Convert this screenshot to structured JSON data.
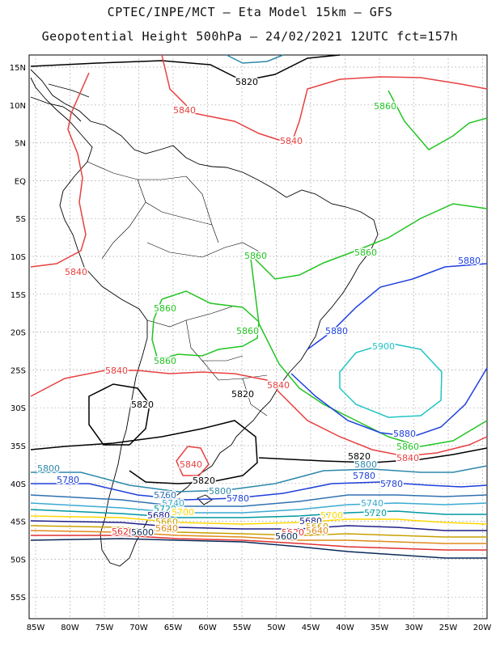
{
  "header": {
    "line1": "CPTEC/INPE/MCT —  Eta Model 15km — GFS",
    "line2": "Geopotential Height 500hPa — 24/02/2021 12UTC fct=157h"
  },
  "map": {
    "lat_labels": [
      "15N",
      "10N",
      "5N",
      "EQ",
      "5S",
      "10S",
      "15S",
      "20S",
      "25S",
      "30S",
      "35S",
      "40S",
      "45S",
      "50S",
      "55S"
    ],
    "lon_labels": [
      "85W",
      "80W",
      "75W",
      "70W",
      "65W",
      "60W",
      "55W",
      "50W",
      "45W",
      "40W",
      "35W",
      "30W",
      "25W",
      "20W"
    ],
    "grid": true,
    "colors": {
      "c5580": "#1a1a7a",
      "c5600": "#0a2a5a",
      "c5620": "#e03030",
      "c5640": "#e08a1a",
      "c5660": "#c8a000",
      "c5680": "#1e1e8c",
      "c5700": "#ffd700",
      "c5720": "#0098a0",
      "c5740": "#3aaad0",
      "c5760": "#3070b0",
      "c5780": "#1d3fd8",
      "c5800": "#2c88a8",
      "c5820": "#000000",
      "c5840": "#e84040",
      "c5860": "#22c422",
      "c5880": "#1e3fe0",
      "c5900": "#22c4c4"
    },
    "contour_labels": [
      {
        "text": "5820",
        "color": "c5820"
      },
      {
        "text": "5840",
        "color": "c5840"
      },
      {
        "text": "5840",
        "color": "c5840"
      },
      {
        "text": "5860",
        "color": "c5860"
      },
      {
        "text": "5840",
        "color": "c5840"
      },
      {
        "text": "5860",
        "color": "c5860"
      },
      {
        "text": "5860",
        "color": "c5860"
      },
      {
        "text": "5880",
        "color": "c5880"
      },
      {
        "text": "5860",
        "color": "c5860"
      },
      {
        "text": "5860",
        "color": "c5860"
      },
      {
        "text": "5880",
        "color": "c5880"
      },
      {
        "text": "5860",
        "color": "c5860"
      },
      {
        "text": "5900",
        "color": "c5900"
      },
      {
        "text": "5840",
        "color": "c5840"
      },
      {
        "text": "5820",
        "color": "c5820"
      },
      {
        "text": "5820",
        "color": "c5820"
      },
      {
        "text": "5840",
        "color": "c5840"
      },
      {
        "text": "5880",
        "color": "c5880"
      },
      {
        "text": "5860",
        "color": "c5860"
      },
      {
        "text": "5840",
        "color": "c5840"
      },
      {
        "text": "5840",
        "color": "c5840"
      },
      {
        "text": "5820",
        "color": "c5820"
      },
      {
        "text": "5800",
        "color": "c5800"
      },
      {
        "text": "5800",
        "color": "c5800"
      },
      {
        "text": "5780",
        "color": "c5780"
      },
      {
        "text": "5820",
        "color": "c5820"
      },
      {
        "text": "5800",
        "color": "c5800"
      },
      {
        "text": "5780",
        "color": "c5780"
      },
      {
        "text": "5780",
        "color": "c5780"
      },
      {
        "text": "5780",
        "color": "c5780"
      },
      {
        "text": "5760",
        "color": "c5760"
      },
      {
        "text": "5740",
        "color": "c5740"
      },
      {
        "text": "5720",
        "color": "c5720"
      },
      {
        "text": "5740",
        "color": "c5740"
      },
      {
        "text": "5720",
        "color": "c5720"
      },
      {
        "text": "5700",
        "color": "c5700"
      },
      {
        "text": "5680",
        "color": "c5680"
      },
      {
        "text": "5660",
        "color": "c5660"
      },
      {
        "text": "5640",
        "color": "c5640"
      },
      {
        "text": "5620",
        "color": "c5620"
      },
      {
        "text": "5600",
        "color": "c5600"
      },
      {
        "text": "5700",
        "color": "c5700"
      },
      {
        "text": "5680",
        "color": "c5680"
      },
      {
        "text": "5660",
        "color": "c5660"
      },
      {
        "text": "5640",
        "color": "c5640"
      },
      {
        "text": "5620",
        "color": "c5620"
      },
      {
        "text": "5600",
        "color": "c5600"
      }
    ]
  }
}
